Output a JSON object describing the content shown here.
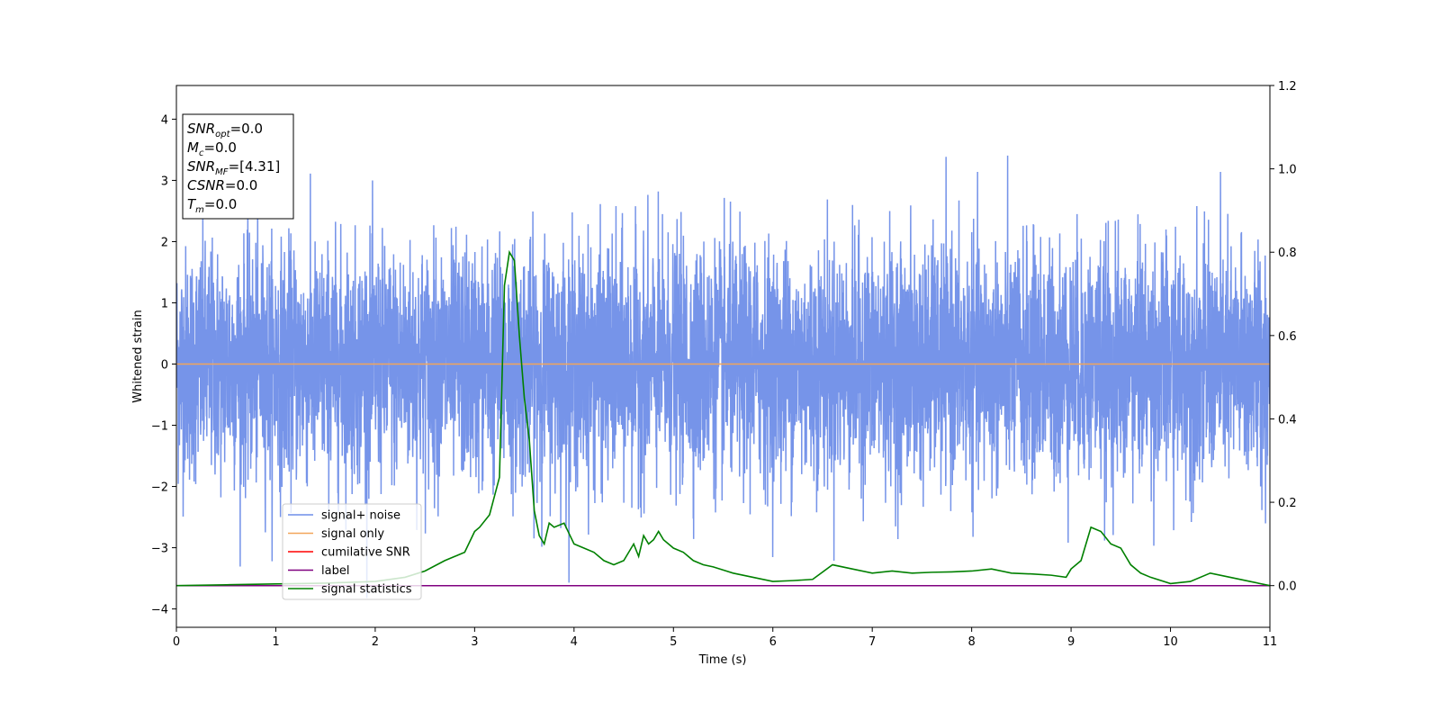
{
  "chart_data": {
    "type": "line",
    "title": "",
    "xlabel": "Time (s)",
    "ylabel_left": "Whitened strain",
    "ylabel_right": "",
    "xlim": [
      0,
      11
    ],
    "ylim_left": [
      -4.3,
      4.55
    ],
    "ylim_right": [
      -0.1,
      1.2
    ],
    "x_ticks": [
      0,
      1,
      2,
      3,
      4,
      5,
      6,
      7,
      8,
      9,
      10,
      11
    ],
    "y_ticks_left": [
      -4,
      -3,
      -2,
      -1,
      0,
      1,
      2,
      3,
      4
    ],
    "y_ticks_right": [
      0.0,
      0.2,
      0.4,
      0.6,
      0.8,
      1.0,
      1.2
    ],
    "grid": false,
    "colors": {
      "signal_noise": "#6f8ee8",
      "signal_only": "#f2a55a",
      "cumulative_snr": "#ff0000",
      "label": "#800080",
      "signal_statistics": "#008000"
    },
    "legend": {
      "placement": "lower-left",
      "entries": [
        {
          "label": "signal+ noise",
          "color": "#6f8ee8"
        },
        {
          "label": "signal only",
          "color": "#f2a55a"
        },
        {
          "label": "cumilative SNR",
          "color": "#ff0000"
        },
        {
          "label": "label",
          "color": "#800080"
        },
        {
          "label": "signal statistics",
          "color": "#008000"
        }
      ]
    },
    "info_box": {
      "lines": [
        {
          "sym": "SNR",
          "sub": "opt",
          "val": "=0.0"
        },
        {
          "sym": "M",
          "sub": "c",
          "val": "=0.0"
        },
        {
          "sym": "SNR",
          "sub": "MF",
          "val": "=[4.31]"
        },
        {
          "sym": "CSNR",
          "sub": "",
          "val": "=0.0"
        },
        {
          "sym": "T",
          "sub": "m",
          "val": "=0.0"
        }
      ]
    },
    "series": [
      {
        "name": "signal+ noise",
        "axis": "left",
        "description": "whitened noise, approximately Gaussian, std about 0.95, sampled densely over 0 to 11 s"
      },
      {
        "name": "signal only",
        "axis": "left",
        "x": [
          0,
          11
        ],
        "y": [
          0,
          0
        ]
      },
      {
        "name": "label",
        "axis": "right",
        "x": [
          0,
          11
        ],
        "y": [
          0,
          0
        ]
      },
      {
        "name": "signal statistics",
        "axis": "right",
        "x": [
          0,
          0.5,
          1.0,
          1.5,
          2.0,
          2.3,
          2.5,
          2.7,
          2.8,
          2.9,
          3.0,
          3.05,
          3.15,
          3.25,
          3.3,
          3.35,
          3.4,
          3.45,
          3.5,
          3.55,
          3.6,
          3.65,
          3.7,
          3.75,
          3.8,
          3.9,
          4.0,
          4.1,
          4.2,
          4.3,
          4.4,
          4.5,
          4.6,
          4.65,
          4.7,
          4.75,
          4.8,
          4.85,
          4.9,
          4.95,
          5.0,
          5.1,
          5.2,
          5.3,
          5.4,
          5.6,
          5.8,
          6.0,
          6.2,
          6.4,
          6.6,
          6.8,
          7.0,
          7.2,
          7.4,
          7.6,
          7.8,
          8.0,
          8.2,
          8.4,
          8.6,
          8.8,
          8.95,
          9.0,
          9.1,
          9.2,
          9.3,
          9.4,
          9.5,
          9.6,
          9.7,
          9.8,
          10.0,
          10.2,
          10.4,
          10.6,
          10.8,
          11.0
        ],
        "y": [
          0.0,
          0.002,
          0.004,
          0.006,
          0.01,
          0.02,
          0.035,
          0.06,
          0.07,
          0.08,
          0.13,
          0.14,
          0.17,
          0.26,
          0.72,
          0.8,
          0.78,
          0.6,
          0.45,
          0.35,
          0.18,
          0.12,
          0.1,
          0.15,
          0.14,
          0.15,
          0.1,
          0.09,
          0.08,
          0.06,
          0.05,
          0.06,
          0.1,
          0.07,
          0.12,
          0.1,
          0.11,
          0.13,
          0.11,
          0.1,
          0.09,
          0.08,
          0.06,
          0.05,
          0.045,
          0.03,
          0.02,
          0.01,
          0.012,
          0.015,
          0.05,
          0.04,
          0.03,
          0.035,
          0.03,
          0.032,
          0.033,
          0.035,
          0.04,
          0.03,
          0.028,
          0.025,
          0.02,
          0.04,
          0.06,
          0.14,
          0.13,
          0.1,
          0.09,
          0.05,
          0.03,
          0.02,
          0.005,
          0.01,
          0.03,
          0.02,
          0.01,
          0.0
        ]
      }
    ]
  }
}
